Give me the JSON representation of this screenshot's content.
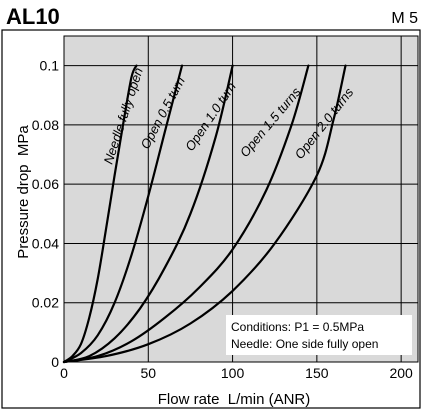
{
  "header": {
    "title": "AL10",
    "port_size": "M 5"
  },
  "colors": {
    "plot_bg": "#d9d9d9",
    "page_bg": "#ffffff",
    "curve": "#000000",
    "grid": "#000000"
  },
  "chart_data": {
    "type": "line",
    "title": "AL10",
    "xlabel": "Flow rate  L/min (ANR)",
    "ylabel": "Pressure drop  MPa",
    "xlim": [
      0,
      210
    ],
    "ylim": [
      0,
      0.11
    ],
    "xticks": [
      0,
      50,
      100,
      150,
      200
    ],
    "yticks": [
      0,
      0.02,
      0.04,
      0.06,
      0.08,
      0.1
    ],
    "xtick_labels": [
      "0",
      "50",
      "100",
      "150",
      "200"
    ],
    "ytick_labels": [
      "0",
      "0.02",
      "0.04",
      "0.06",
      "0.08",
      "0.1"
    ],
    "grid": true,
    "series": [
      {
        "name": "Needle fully open",
        "x": [
          0,
          5,
          10,
          15,
          20,
          25,
          30,
          35,
          40,
          43
        ],
        "y": [
          0,
          0.002,
          0.006,
          0.015,
          0.028,
          0.045,
          0.063,
          0.08,
          0.096,
          0.1
        ]
      },
      {
        "name": "Open 0.5 turn",
        "x": [
          0,
          10,
          20,
          30,
          40,
          50,
          60,
          70
        ],
        "y": [
          0,
          0.003,
          0.009,
          0.02,
          0.036,
          0.056,
          0.078,
          0.1
        ]
      },
      {
        "name": "Open 1.0 turn",
        "x": [
          0,
          15,
          30,
          45,
          60,
          75,
          90,
          100
        ],
        "y": [
          0,
          0.002,
          0.008,
          0.018,
          0.032,
          0.05,
          0.076,
          0.1
        ]
      },
      {
        "name": "Open 1.5 turns",
        "x": [
          0,
          20,
          40,
          60,
          80,
          100,
          120,
          135,
          145
        ],
        "y": [
          0,
          0.002,
          0.007,
          0.015,
          0.025,
          0.038,
          0.058,
          0.08,
          0.1
        ]
      },
      {
        "name": "Open 2.0 turns",
        "x": [
          0,
          25,
          50,
          75,
          100,
          125,
          150,
          160,
          167
        ],
        "y": [
          0,
          0.002,
          0.006,
          0.013,
          0.024,
          0.04,
          0.063,
          0.082,
          0.1
        ]
      }
    ],
    "annotations": [
      "Conditions: P1 = 0.5MPa",
      "Needle: One side fully open"
    ]
  }
}
